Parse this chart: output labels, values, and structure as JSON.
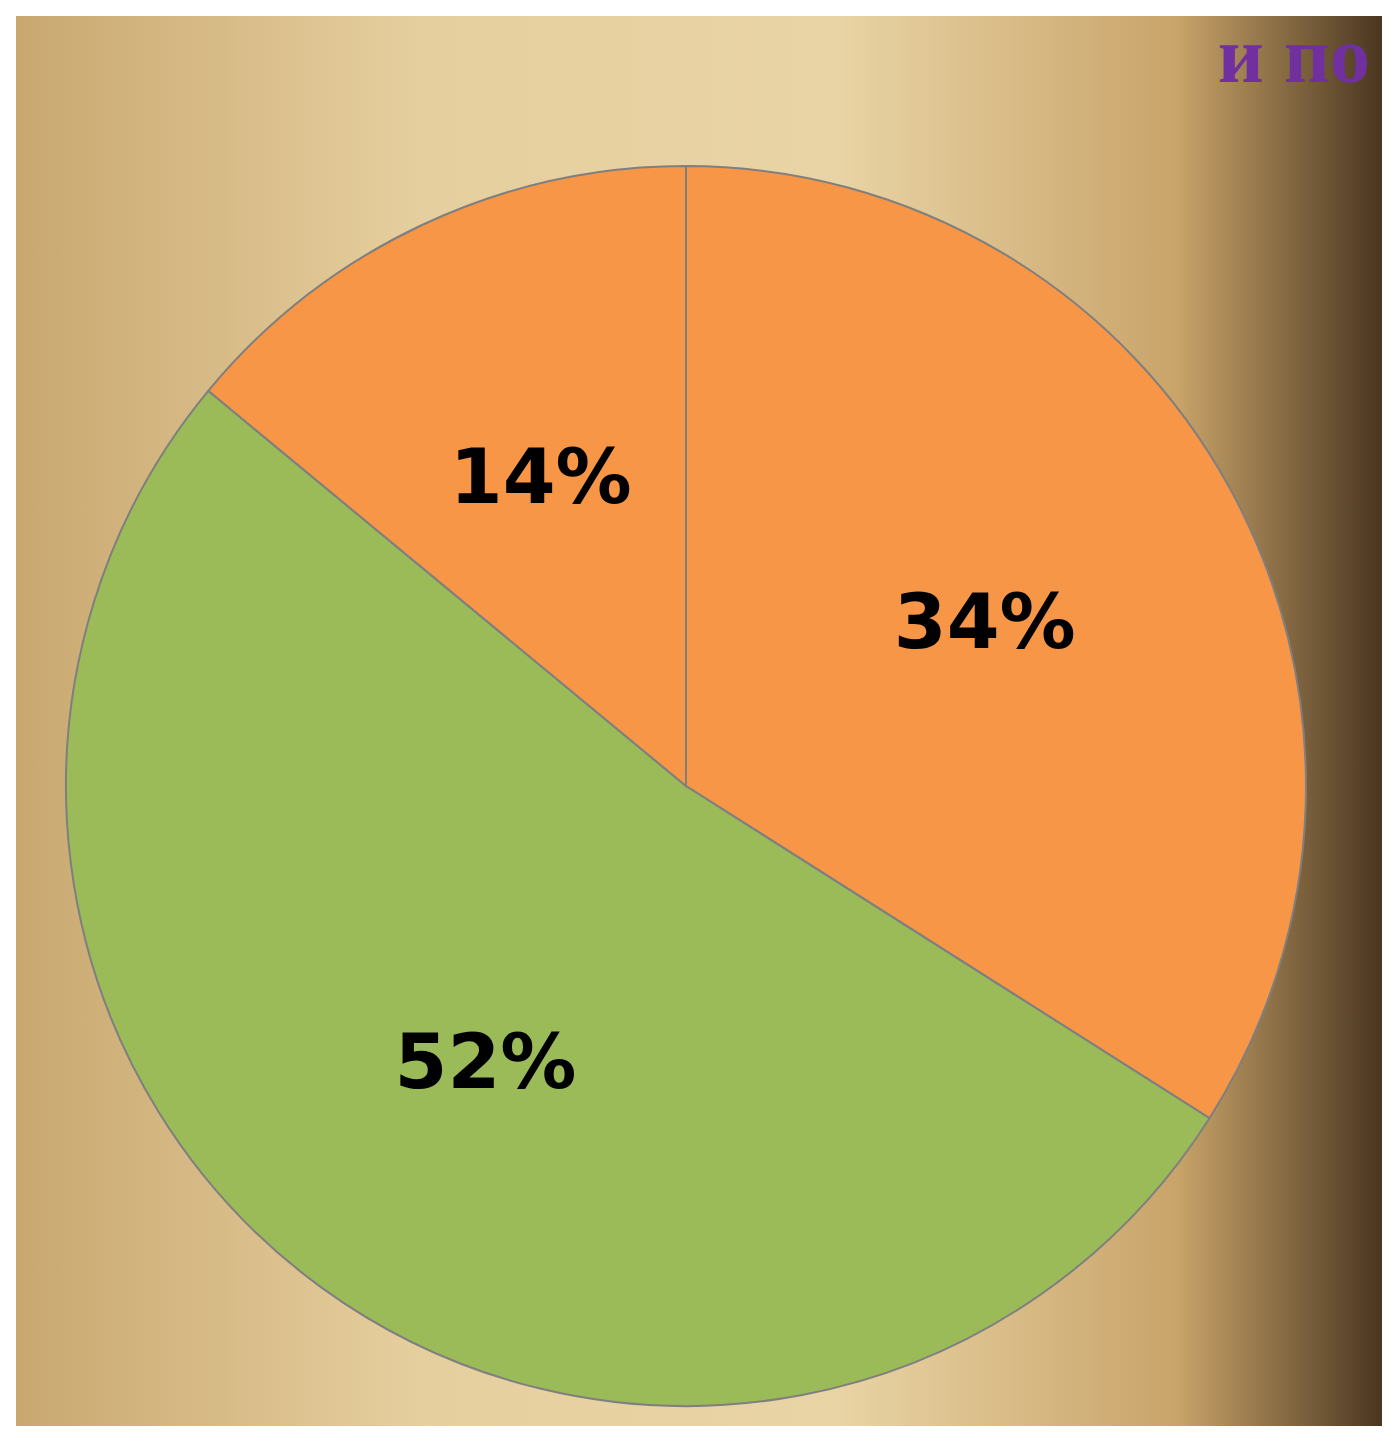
{
  "chart_data": {
    "type": "pie",
    "title": "и по",
    "categories": [
      null,
      null,
      null
    ],
    "values": [
      34,
      52,
      14
    ],
    "colors": [
      "#f79646",
      "#9bbb59",
      "#f79646"
    ],
    "value_labels": [
      "34%",
      "52%",
      "14%"
    ]
  }
}
